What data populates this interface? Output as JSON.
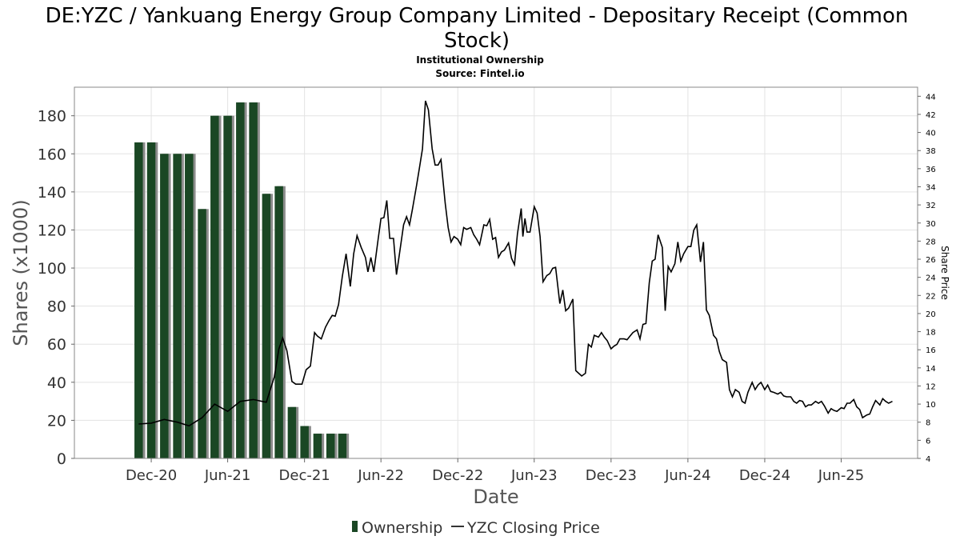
{
  "chart_data": {
    "type": "bar+line",
    "title": "DE:YZC / Yankuang Energy Group Company Limited - Depositary Receipt (Common Stock)",
    "title_lines": [
      "DE:YZC / Yankuang Energy Group Company Limited - Depositary Receipt (Common",
      "Stock)"
    ],
    "subtitle": "Institutional Ownership",
    "source": "Source: Fintel.io",
    "xlabel": "Date",
    "ylabel": "Shares (x1000)",
    "y2label": "Share Price",
    "xlim": [
      "2020-06-01",
      "2025-11-30"
    ],
    "ylim": [
      0,
      195
    ],
    "y2lim": [
      4,
      45
    ],
    "x_ticks": [
      {
        "date": "2020-12-01",
        "label": "Dec-20"
      },
      {
        "date": "2021-06-01",
        "label": "Jun-21"
      },
      {
        "date": "2021-12-01",
        "label": "Dec-21"
      },
      {
        "date": "2022-06-01",
        "label": "Jun-22"
      },
      {
        "date": "2022-12-01",
        "label": "Dec-22"
      },
      {
        "date": "2023-06-01",
        "label": "Jun-23"
      },
      {
        "date": "2023-12-01",
        "label": "Dec-23"
      },
      {
        "date": "2024-06-01",
        "label": "Jun-24"
      },
      {
        "date": "2024-12-01",
        "label": "Dec-24"
      },
      {
        "date": "2025-06-01",
        "label": "Jun-25"
      }
    ],
    "y_ticks": [
      0,
      20,
      40,
      60,
      80,
      100,
      120,
      140,
      160,
      180
    ],
    "y2_ticks": [
      4,
      6,
      8,
      10,
      12,
      14,
      16,
      18,
      20,
      22,
      24,
      26,
      28,
      30,
      32,
      34,
      36,
      38,
      40,
      42,
      44
    ],
    "grid": true,
    "legend_position": "bottom-center",
    "series": [
      {
        "name": "Ownership",
        "kind": "bar",
        "axis": "left",
        "color": "#1a4724",
        "points": [
          {
            "date": "2020-11-01",
            "value": 166
          },
          {
            "date": "2020-12-01",
            "value": 166
          },
          {
            "date": "2021-01-01",
            "value": 160
          },
          {
            "date": "2021-02-01",
            "value": 160
          },
          {
            "date": "2021-03-01",
            "value": 160
          },
          {
            "date": "2021-04-01",
            "value": 131
          },
          {
            "date": "2021-05-01",
            "value": 180
          },
          {
            "date": "2021-06-01",
            "value": 180
          },
          {
            "date": "2021-07-01",
            "value": 187
          },
          {
            "date": "2021-08-01",
            "value": 187
          },
          {
            "date": "2021-09-01",
            "value": 139
          },
          {
            "date": "2021-10-01",
            "value": 143
          },
          {
            "date": "2021-11-01",
            "value": 27
          },
          {
            "date": "2021-12-01",
            "value": 17
          },
          {
            "date": "2022-01-01",
            "value": 13
          },
          {
            "date": "2022-02-01",
            "value": 13
          },
          {
            "date": "2022-03-01",
            "value": 13
          }
        ]
      },
      {
        "name": "YZC Closing Price",
        "kind": "line",
        "axis": "right",
        "color": "#000000",
        "points": [
          [
            "2020-11-01",
            7.8
          ],
          [
            "2020-12-01",
            7.9
          ],
          [
            "2021-01-01",
            8.3
          ],
          [
            "2021-02-01",
            8.0
          ],
          [
            "2021-03-01",
            7.6
          ],
          [
            "2021-04-01",
            8.5
          ],
          [
            "2021-05-01",
            10.0
          ],
          [
            "2021-06-01",
            9.2
          ],
          [
            "2021-07-01",
            10.3
          ],
          [
            "2021-08-01",
            10.5
          ],
          [
            "2021-09-01",
            10.2
          ],
          [
            "2021-09-20",
            13.0
          ],
          [
            "2021-10-01",
            16.1
          ],
          [
            "2021-10-10",
            17.3
          ],
          [
            "2021-10-20",
            15.9
          ],
          [
            "2021-11-01",
            12.5
          ],
          [
            "2021-11-10",
            12.2
          ],
          [
            "2021-11-25",
            12.2
          ],
          [
            "2021-12-05",
            13.8
          ],
          [
            "2021-12-15",
            14.2
          ],
          [
            "2021-12-25",
            17.9
          ],
          [
            "2022-01-01",
            17.5
          ],
          [
            "2022-01-10",
            17.2
          ],
          [
            "2022-01-20",
            18.5
          ],
          [
            "2022-01-28",
            19.2
          ],
          [
            "2022-02-05",
            19.8
          ],
          [
            "2022-02-12",
            19.7
          ],
          [
            "2022-02-20",
            21.0
          ],
          [
            "2022-03-01",
            24.1
          ],
          [
            "2022-03-10",
            26.6
          ],
          [
            "2022-03-20",
            23.0
          ],
          [
            "2022-03-28",
            26.6
          ],
          [
            "2022-04-05",
            28.6
          ],
          [
            "2022-04-15",
            27.3
          ],
          [
            "2022-04-25",
            26.2
          ],
          [
            "2022-05-01",
            24.6
          ],
          [
            "2022-05-08",
            26.2
          ],
          [
            "2022-05-15",
            24.6
          ],
          [
            "2022-05-25",
            28.1
          ],
          [
            "2022-06-01",
            30.5
          ],
          [
            "2022-06-08",
            30.6
          ],
          [
            "2022-06-15",
            32.5
          ],
          [
            "2022-06-22",
            28.3
          ],
          [
            "2022-07-01",
            28.3
          ],
          [
            "2022-07-08",
            24.3
          ],
          [
            "2022-07-18",
            27.5
          ],
          [
            "2022-07-25",
            29.8
          ],
          [
            "2022-08-01",
            30.7
          ],
          [
            "2022-08-08",
            29.8
          ],
          [
            "2022-08-15",
            31.5
          ],
          [
            "2022-08-25",
            34.2
          ],
          [
            "2022-09-01",
            36.2
          ],
          [
            "2022-09-08",
            38.2
          ],
          [
            "2022-09-15",
            43.5
          ],
          [
            "2022-09-22",
            42.5
          ],
          [
            "2022-10-01",
            38.2
          ],
          [
            "2022-10-08",
            36.4
          ],
          [
            "2022-10-15",
            36.4
          ],
          [
            "2022-10-22",
            37.0
          ],
          [
            "2022-11-01",
            32.2
          ],
          [
            "2022-11-08",
            29.5
          ],
          [
            "2022-11-15",
            27.9
          ],
          [
            "2022-11-22",
            28.5
          ],
          [
            "2022-12-01",
            28.2
          ],
          [
            "2022-12-08",
            27.6
          ],
          [
            "2022-12-15",
            29.5
          ],
          [
            "2022-12-22",
            29.3
          ],
          [
            "2023-01-01",
            29.5
          ],
          [
            "2023-01-08",
            28.7
          ],
          [
            "2023-01-15",
            28.2
          ],
          [
            "2023-01-22",
            27.6
          ],
          [
            "2023-02-01",
            29.8
          ],
          [
            "2023-02-08",
            29.7
          ],
          [
            "2023-02-15",
            30.4
          ],
          [
            "2023-02-22",
            28.2
          ],
          [
            "2023-03-01",
            28.4
          ],
          [
            "2023-03-08",
            26.2
          ],
          [
            "2023-03-15",
            26.8
          ],
          [
            "2023-03-22",
            27.0
          ],
          [
            "2023-04-01",
            27.8
          ],
          [
            "2023-04-08",
            26.1
          ],
          [
            "2023-04-15",
            25.4
          ],
          [
            "2023-04-22",
            28.8
          ],
          [
            "2023-05-01",
            31.6
          ],
          [
            "2023-05-05",
            28.5
          ],
          [
            "2023-05-10",
            30.5
          ],
          [
            "2023-05-15",
            29.0
          ],
          [
            "2023-05-22",
            29.0
          ],
          [
            "2023-06-01",
            31.8
          ],
          [
            "2023-06-08",
            31.1
          ],
          [
            "2023-06-15",
            28.5
          ],
          [
            "2023-06-22",
            23.5
          ],
          [
            "2023-07-01",
            24.2
          ],
          [
            "2023-07-08",
            24.4
          ],
          [
            "2023-07-15",
            25.0
          ],
          [
            "2023-07-22",
            25.1
          ],
          [
            "2023-08-01",
            21.1
          ],
          [
            "2023-08-08",
            22.6
          ],
          [
            "2023-08-15",
            20.3
          ],
          [
            "2023-08-22",
            20.6
          ],
          [
            "2023-09-01",
            21.6
          ],
          [
            "2023-09-08",
            13.7
          ],
          [
            "2023-09-15",
            13.4
          ],
          [
            "2023-09-22",
            13.1
          ],
          [
            "2023-10-01",
            13.4
          ],
          [
            "2023-10-08",
            16.6
          ],
          [
            "2023-10-15",
            16.3
          ],
          [
            "2023-10-22",
            17.6
          ],
          [
            "2023-11-01",
            17.4
          ],
          [
            "2023-11-08",
            17.9
          ],
          [
            "2023-11-15",
            17.4
          ],
          [
            "2023-11-22",
            17.0
          ],
          [
            "2023-12-01",
            16.1
          ],
          [
            "2023-12-08",
            16.4
          ],
          [
            "2023-12-15",
            16.6
          ],
          [
            "2023-12-22",
            17.2
          ],
          [
            "2024-01-01",
            17.2
          ],
          [
            "2024-01-08",
            17.1
          ],
          [
            "2024-01-15",
            17.5
          ],
          [
            "2024-01-22",
            17.9
          ],
          [
            "2024-02-01",
            18.2
          ],
          [
            "2024-02-08",
            17.2
          ],
          [
            "2024-02-15",
            18.8
          ],
          [
            "2024-02-22",
            18.9
          ],
          [
            "2024-03-01",
            23.4
          ],
          [
            "2024-03-08",
            25.8
          ],
          [
            "2024-03-15",
            26.0
          ],
          [
            "2024-03-22",
            28.7
          ],
          [
            "2024-04-01",
            27.3
          ],
          [
            "2024-04-08",
            20.3
          ],
          [
            "2024-04-15",
            25.2
          ],
          [
            "2024-04-22",
            24.6
          ],
          [
            "2024-05-01",
            25.5
          ],
          [
            "2024-05-08",
            27.9
          ],
          [
            "2024-05-15",
            25.8
          ],
          [
            "2024-05-22",
            26.6
          ],
          [
            "2024-06-01",
            27.4
          ],
          [
            "2024-06-08",
            27.4
          ],
          [
            "2024-06-15",
            29.2
          ],
          [
            "2024-06-22",
            29.8
          ],
          [
            "2024-07-01",
            25.7
          ],
          [
            "2024-07-08",
            27.9
          ],
          [
            "2024-07-15",
            20.4
          ],
          [
            "2024-07-22",
            19.8
          ],
          [
            "2024-08-01",
            17.6
          ],
          [
            "2024-08-08",
            17.2
          ],
          [
            "2024-08-15",
            15.8
          ],
          [
            "2024-08-22",
            14.9
          ],
          [
            "2024-09-01",
            14.6
          ],
          [
            "2024-09-08",
            11.6
          ],
          [
            "2024-09-15",
            10.8
          ],
          [
            "2024-09-22",
            11.6
          ],
          [
            "2024-10-01",
            11.3
          ],
          [
            "2024-10-08",
            10.3
          ],
          [
            "2024-10-15",
            10.1
          ],
          [
            "2024-10-22",
            11.3
          ],
          [
            "2024-11-01",
            12.4
          ],
          [
            "2024-11-08",
            11.6
          ],
          [
            "2024-11-15",
            12.1
          ],
          [
            "2024-11-22",
            12.4
          ],
          [
            "2024-12-01",
            11.6
          ],
          [
            "2024-12-08",
            12.1
          ],
          [
            "2024-12-15",
            11.4
          ],
          [
            "2024-12-22",
            11.3
          ],
          [
            "2025-01-01",
            11.1
          ],
          [
            "2025-01-08",
            11.3
          ],
          [
            "2025-01-15",
            10.9
          ],
          [
            "2025-01-22",
            10.8
          ],
          [
            "2025-02-01",
            10.8
          ],
          [
            "2025-02-08",
            10.3
          ],
          [
            "2025-02-15",
            10.1
          ],
          [
            "2025-02-22",
            10.4
          ],
          [
            "2025-03-01",
            10.3
          ],
          [
            "2025-03-08",
            9.7
          ],
          [
            "2025-03-15",
            9.9
          ],
          [
            "2025-03-22",
            9.9
          ],
          [
            "2025-04-01",
            10.3
          ],
          [
            "2025-04-08",
            10.1
          ],
          [
            "2025-04-15",
            10.3
          ],
          [
            "2025-04-22",
            9.8
          ],
          [
            "2025-05-01",
            9.0
          ],
          [
            "2025-05-08",
            9.5
          ],
          [
            "2025-05-15",
            9.3
          ],
          [
            "2025-05-22",
            9.2
          ],
          [
            "2025-06-01",
            9.6
          ],
          [
            "2025-06-08",
            9.5
          ],
          [
            "2025-06-15",
            10.1
          ],
          [
            "2025-06-22",
            10.1
          ],
          [
            "2025-07-01",
            10.5
          ],
          [
            "2025-07-08",
            9.7
          ],
          [
            "2025-07-15",
            9.4
          ],
          [
            "2025-07-22",
            8.5
          ],
          [
            "2025-08-01",
            8.8
          ],
          [
            "2025-08-08",
            8.9
          ],
          [
            "2025-08-15",
            9.7
          ],
          [
            "2025-08-22",
            10.4
          ],
          [
            "2025-09-01",
            9.9
          ],
          [
            "2025-09-08",
            10.6
          ],
          [
            "2025-09-15",
            10.3
          ],
          [
            "2025-09-22",
            10.1
          ],
          [
            "2025-10-01",
            10.3
          ]
        ]
      }
    ]
  }
}
